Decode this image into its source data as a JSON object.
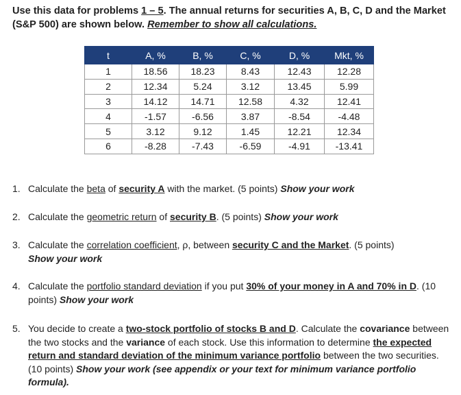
{
  "intro": {
    "p1": "Use this data for problems ",
    "range": "1 – 5",
    "p2": ".  The annual returns for securities A, B, C, D and the Market (S&P 500) are shown below.  ",
    "reminder": "Remember to show all calculations."
  },
  "table": {
    "headers": [
      "t",
      "A, %",
      "B, %",
      "C, %",
      "D, %",
      "Mkt, %"
    ],
    "rows": [
      [
        "1",
        "18.56",
        "18.23",
        "8.43",
        "12.43",
        "12.28"
      ],
      [
        "2",
        "12.34",
        "5.24",
        "3.12",
        "13.45",
        "5.99"
      ],
      [
        "3",
        "14.12",
        "14.71",
        "12.58",
        "4.32",
        "12.41"
      ],
      [
        "4",
        "-1.57",
        "-6.56",
        "3.87",
        "-8.54",
        "-4.48"
      ],
      [
        "5",
        "3.12",
        "9.12",
        "1.45",
        "12.21",
        "12.34"
      ],
      [
        "6",
        "-8.28",
        "-7.43",
        "-6.59",
        "-4.91",
        "-13.41"
      ]
    ]
  },
  "questions": {
    "q1": {
      "num": "1.",
      "a": "Calculate the ",
      "b": "beta",
      "c": " of ",
      "d": "security A",
      "e": " with the market. (5 points) ",
      "f": "Show your work"
    },
    "q2": {
      "num": "2.",
      "a": "Calculate the ",
      "b": "geometric return",
      "c": " of ",
      "d": "security B",
      "e": ". (5 points)  ",
      "f": "Show your work"
    },
    "q3": {
      "num": "3.",
      "a": "Calculate the ",
      "b": "correlation coefficient",
      "c": ", ρ, between ",
      "d": "security C and the Market",
      "e": ". (5 points) ",
      "f": "Show your work"
    },
    "q4": {
      "num": "4.",
      "a": "Calculate the ",
      "b": "portfolio standard deviation",
      "c": " if you put ",
      "d": "30% of your money in A and 70% in D",
      "e": ". (10 points)  ",
      "f": "Show your work"
    },
    "q5": {
      "num": "5.",
      "a": "You decide to create a ",
      "b": "two-stock portfolio of stocks B and D",
      "c": ".  Calculate the ",
      "d": "covariance",
      "e": " between the two stocks and the ",
      "f": "variance",
      "g": " of each stock.   Use this information to determine ",
      "h": "the expected return and standard deviation of the minimum variance portfolio",
      "i": " between the two securities.  (10 points) ",
      "j": "Show your work (see appendix or your text for minimum variance portfolio formula)."
    }
  }
}
